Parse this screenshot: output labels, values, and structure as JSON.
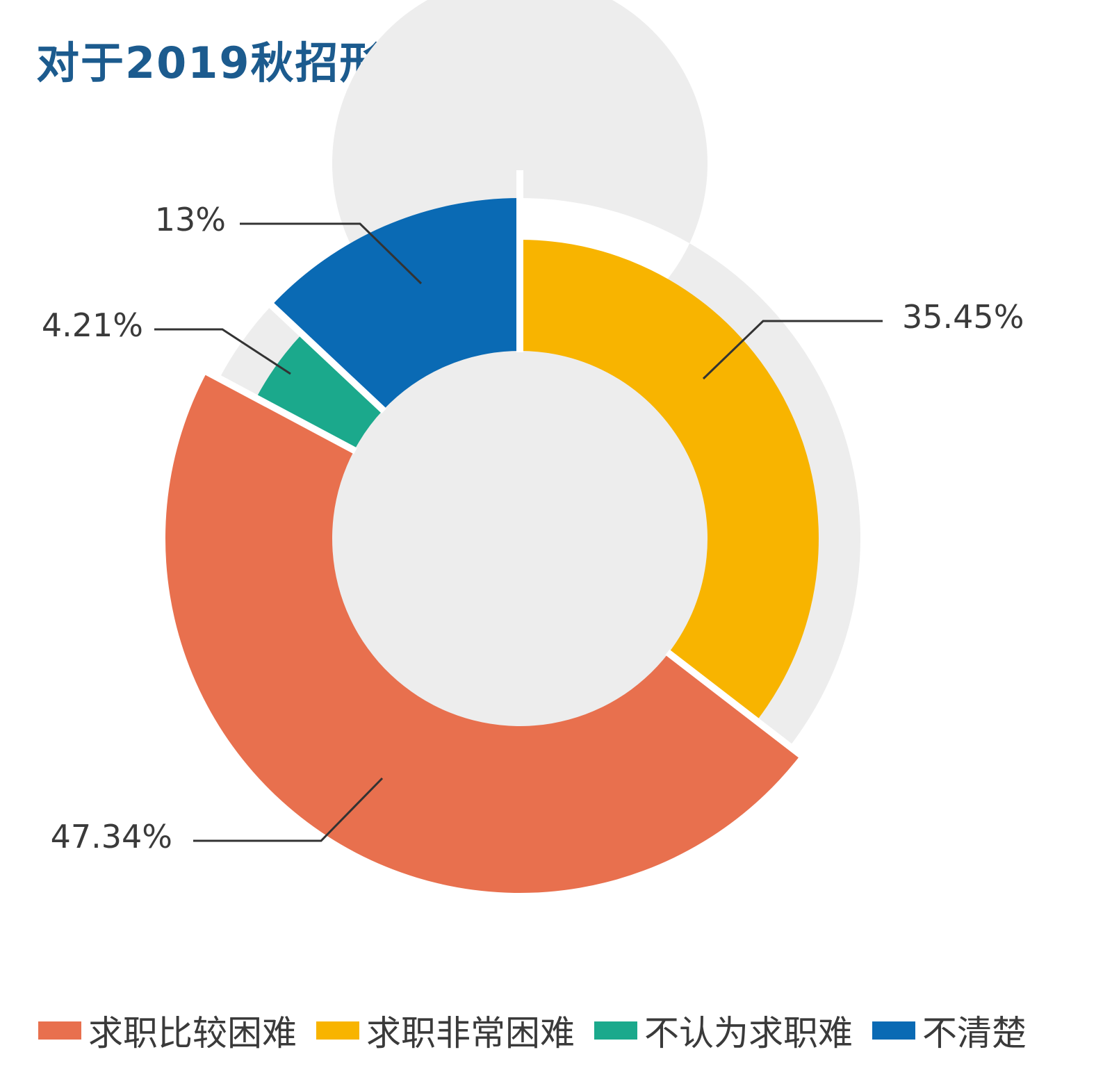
{
  "chart_data": {
    "type": "pie",
    "title": "对于2019秋招形势难度的感知：",
    "donut": true,
    "labels": [
      "求职非常困难",
      "求职比较困难",
      "不认为求职难",
      "不清楚"
    ],
    "values": [
      35.45,
      47.34,
      4.21,
      13
    ],
    "value_labels": [
      "35.45%",
      "47.34%",
      "4.21%",
      "13%"
    ],
    "colors": [
      "#F8B400",
      "#E8704E",
      "#1BA98C",
      "#0A6AB4"
    ],
    "legend_position": "bottom",
    "legend_order": [
      1,
      0,
      2,
      3
    ]
  },
  "style": {
    "title_color": "#1C5B8E",
    "track_color": "#EDEDED",
    "leader_color": "#333333",
    "label_color": "#3a3a3a"
  }
}
